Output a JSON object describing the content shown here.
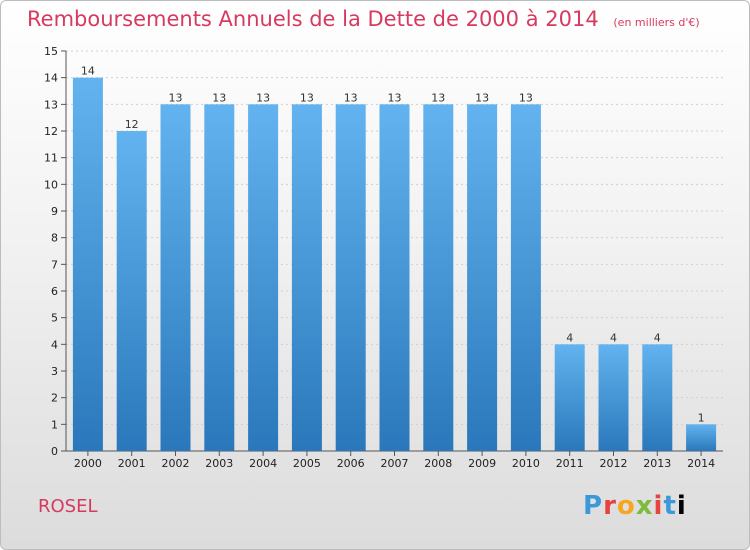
{
  "header": {
    "title": "Remboursements Annuels de la Dette de 2000 à 2014",
    "subtitle": "(en milliers d'€)"
  },
  "footer": {
    "town": "ROSEL",
    "brand": "Proxiti"
  },
  "colors": {
    "title": "#d83a5f",
    "bar_top": "#62b3ef",
    "bar_bottom": "#2a78bb",
    "grid": "#cfcfcf"
  },
  "chart_data": {
    "type": "bar",
    "title": "Remboursements Annuels de la Dette de 2000 à 2014",
    "subtitle": "(en milliers d'€)",
    "categories": [
      "2000",
      "2001",
      "2002",
      "2003",
      "2004",
      "2005",
      "2006",
      "2007",
      "2008",
      "2009",
      "2010",
      "2011",
      "2012",
      "2013",
      "2014"
    ],
    "values": [
      14,
      12,
      13,
      13,
      13,
      13,
      13,
      13,
      13,
      13,
      13,
      4,
      4,
      4,
      1
    ],
    "ylim": [
      0,
      15
    ],
    "yticks": [
      0,
      1,
      2,
      3,
      4,
      5,
      6,
      7,
      8,
      9,
      10,
      11,
      12,
      13,
      14,
      15
    ],
    "grid": true,
    "xlabel": "",
    "ylabel": ""
  }
}
